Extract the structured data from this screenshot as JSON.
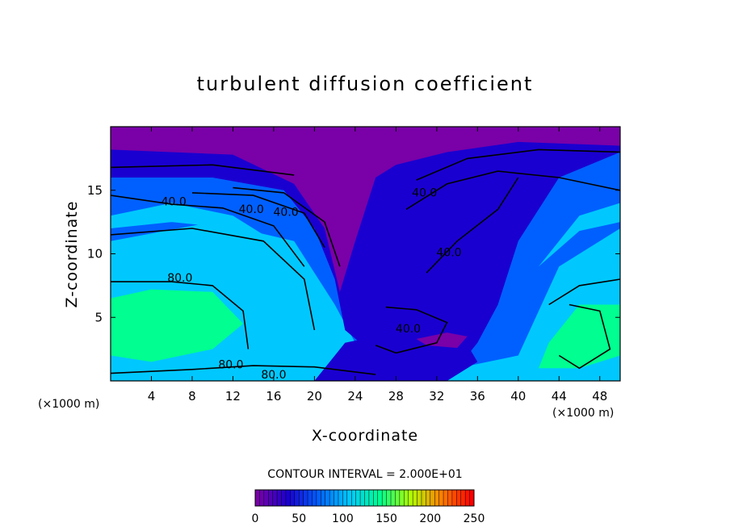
{
  "chart_data": {
    "type": "heatmap",
    "title": "turbulent diffusion coefficient",
    "xlabel": "X-coordinate",
    "ylabel": "Z-coordinate",
    "x_unit": "(×1000 m)",
    "y_unit": "(×1000 m)",
    "xlim": [
      0,
      50
    ],
    "ylim": [
      0,
      20
    ],
    "x_ticks": [
      4,
      8,
      12,
      16,
      20,
      24,
      28,
      32,
      36,
      40,
      44,
      48
    ],
    "y_ticks": [
      5,
      10,
      15
    ],
    "contour_interval_text": "CONTOUR INTERVAL = 2.000E+01",
    "contour_labels": [
      {
        "text": "40.0",
        "x": 6.2,
        "y": 13.8
      },
      {
        "text": "40.0",
        "x": 13.8,
        "y": 13.2
      },
      {
        "text": "40.0",
        "x": 17.2,
        "y": 13.0
      },
      {
        "text": "40.0",
        "x": 30.8,
        "y": 14.5
      },
      {
        "text": "40.0",
        "x": 33.2,
        "y": 9.8
      },
      {
        "text": "40.0",
        "x": 29.2,
        "y": 3.8
      },
      {
        "text": "80.0",
        "x": 6.8,
        "y": 7.8
      },
      {
        "text": "80.0",
        "x": 11.8,
        "y": 1.0
      },
      {
        "text": "80.0",
        "x": 16.0,
        "y": 0.2
      }
    ],
    "colorbar": {
      "min": 0,
      "max": 250,
      "ticks": [
        0,
        50,
        100,
        150,
        200,
        250
      ],
      "colors": [
        "#7a00a8",
        "#1a00d0",
        "#0060ff",
        "#00c8ff",
        "#00ff90",
        "#b0ff00",
        "#ff8000",
        "#ff0000"
      ]
    },
    "field_colors": [
      "#7a00a8",
      "#1a00d0",
      "#0060ff",
      "#00c8ff",
      "#00ff90"
    ],
    "grid": false,
    "legend": "bottom"
  }
}
